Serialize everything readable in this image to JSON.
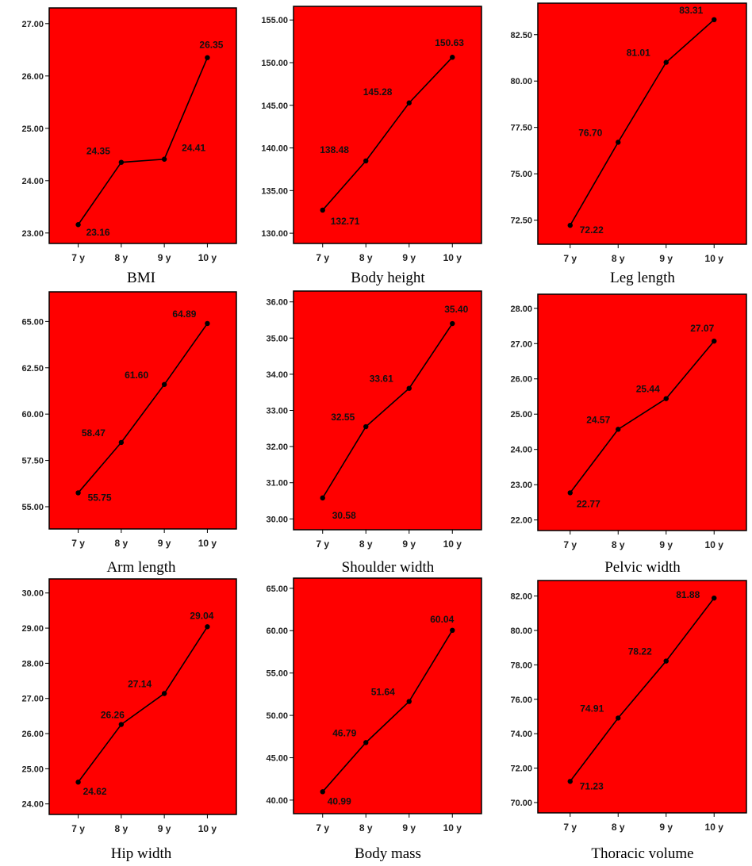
{
  "chart_data": [
    {
      "type": "line",
      "caption": "BMI",
      "categories": [
        "7 y",
        "8 y",
        "9 y",
        "10 y"
      ],
      "values": [
        23.16,
        24.35,
        24.41,
        26.35
      ],
      "data_labels": [
        "23.16",
        "24.35",
        "24.41",
        "26.35"
      ],
      "ylim": [
        22.8,
        27.3
      ],
      "yticks": [
        "23.00",
        "24.00",
        "25.00",
        "26.00",
        "27.00"
      ],
      "yticks_values": [
        23,
        24,
        25,
        26,
        27
      ],
      "plot_color": "#ff0000",
      "line_color": "#000000"
    },
    {
      "type": "line",
      "caption": "Body height",
      "categories": [
        "7 y",
        "8 y",
        "9 y",
        "10 y"
      ],
      "values": [
        132.71,
        138.48,
        145.28,
        150.63
      ],
      "data_labels": [
        "132.71",
        "138.48",
        "145.28",
        "150.63"
      ],
      "ylim": [
        128.8,
        156.6
      ],
      "yticks": [
        "130.00",
        "135.00",
        "140.00",
        "145.00",
        "150.00",
        "155.00"
      ],
      "yticks_values": [
        130,
        135,
        140,
        145,
        150,
        155
      ],
      "plot_color": "#ff0000",
      "line_color": "#000000"
    },
    {
      "type": "line",
      "caption": "Leg length",
      "categories": [
        "7 y",
        "8 y",
        "9 y",
        "10 y"
      ],
      "values": [
        72.22,
        76.7,
        81.01,
        83.31
      ],
      "data_labels": [
        "72.22",
        "76.70",
        "81.01",
        "83.31"
      ],
      "ylim": [
        71.2,
        84.2
      ],
      "yticks": [
        "72.50",
        "75.00",
        "77.50",
        "80.00",
        "82.50"
      ],
      "yticks_values": [
        72.5,
        75,
        77.5,
        80,
        82.5
      ],
      "plot_color": "#ff0000",
      "line_color": "#000000"
    },
    {
      "type": "line",
      "caption": "Arm length",
      "categories": [
        "7 y",
        "8 y",
        "9 y",
        "10 y"
      ],
      "values": [
        55.75,
        58.47,
        61.6,
        64.89
      ],
      "data_labels": [
        "55.75",
        "58.47",
        "61.60",
        "64.89"
      ],
      "ylim": [
        53.8,
        66.6
      ],
      "yticks": [
        "55.00",
        "57.50",
        "60.00",
        "62.50",
        "65.00"
      ],
      "yticks_values": [
        55,
        57.5,
        60,
        62.5,
        65
      ],
      "plot_color": "#ff0000",
      "line_color": "#000000"
    },
    {
      "type": "line",
      "caption": "Shoulder width",
      "categories": [
        "7 y",
        "8 y",
        "9 y",
        "10 y"
      ],
      "values": [
        30.58,
        32.55,
        33.61,
        35.4
      ],
      "data_labels": [
        "30.58",
        "32.55",
        "33.61",
        "35.40"
      ],
      "ylim": [
        29.7,
        36.3
      ],
      "yticks": [
        "30.00",
        "31.00",
        "32.00",
        "33.00",
        "34.00",
        "35.00",
        "36.00"
      ],
      "yticks_values": [
        30,
        31,
        32,
        33,
        34,
        35,
        36
      ],
      "plot_color": "#ff0000",
      "line_color": "#000000"
    },
    {
      "type": "line",
      "caption": "Pelvic width",
      "categories": [
        "7 y",
        "8 y",
        "9 y",
        "10 y"
      ],
      "values": [
        22.77,
        24.57,
        25.44,
        27.07
      ],
      "data_labels": [
        "22.77",
        "24.57",
        "25.44",
        "27.07"
      ],
      "ylim": [
        21.7,
        28.4
      ],
      "yticks": [
        "22.00",
        "23.00",
        "24.00",
        "25.00",
        "26.00",
        "27.00",
        "28.00"
      ],
      "yticks_values": [
        22,
        23,
        24,
        25,
        26,
        27,
        28
      ],
      "plot_color": "#ff0000",
      "line_color": "#000000"
    },
    {
      "type": "line",
      "caption": "Hip width",
      "categories": [
        "7 y",
        "8 y",
        "9 y",
        "10 y"
      ],
      "values": [
        24.62,
        26.26,
        27.14,
        29.04
      ],
      "data_labels": [
        "24.62",
        "26.26",
        "27.14",
        "29.04"
      ],
      "ylim": [
        23.7,
        30.4
      ],
      "yticks": [
        "24.00",
        "25.00",
        "26.00",
        "27.00",
        "28.00",
        "29.00",
        "30.00"
      ],
      "yticks_values": [
        24,
        25,
        26,
        27,
        28,
        29,
        30
      ],
      "plot_color": "#ff0000",
      "line_color": "#000000"
    },
    {
      "type": "line",
      "caption": "Body mass",
      "categories": [
        "7 y",
        "8 y",
        "9 y",
        "10 y"
      ],
      "values": [
        40.99,
        46.79,
        51.64,
        60.04
      ],
      "data_labels": [
        "40.99",
        "46.79",
        "51.64",
        "60.04"
      ],
      "ylim": [
        38.4,
        66.2
      ],
      "yticks": [
        "40.00",
        "45.00",
        "50.00",
        "55.00",
        "60.00",
        "65.00"
      ],
      "yticks_values": [
        40,
        45,
        50,
        55,
        60,
        65
      ],
      "plot_color": "#ff0000",
      "line_color": "#000000"
    },
    {
      "type": "line",
      "caption": "Thoracic volume",
      "categories": [
        "7 y",
        "8 y",
        "9 y",
        "10 y"
      ],
      "values": [
        71.23,
        74.91,
        78.22,
        81.88
      ],
      "data_labels": [
        "71.23",
        "74.91",
        "78.22",
        "81.88"
      ],
      "ylim": [
        69.4,
        82.9
      ],
      "yticks": [
        "70.00",
        "72.00",
        "74.00",
        "76.00",
        "78.00",
        "80.00",
        "82.00"
      ],
      "yticks_values": [
        70,
        72,
        74,
        76,
        78,
        80,
        82
      ],
      "plot_color": "#ff0000",
      "line_color": "#000000"
    }
  ]
}
